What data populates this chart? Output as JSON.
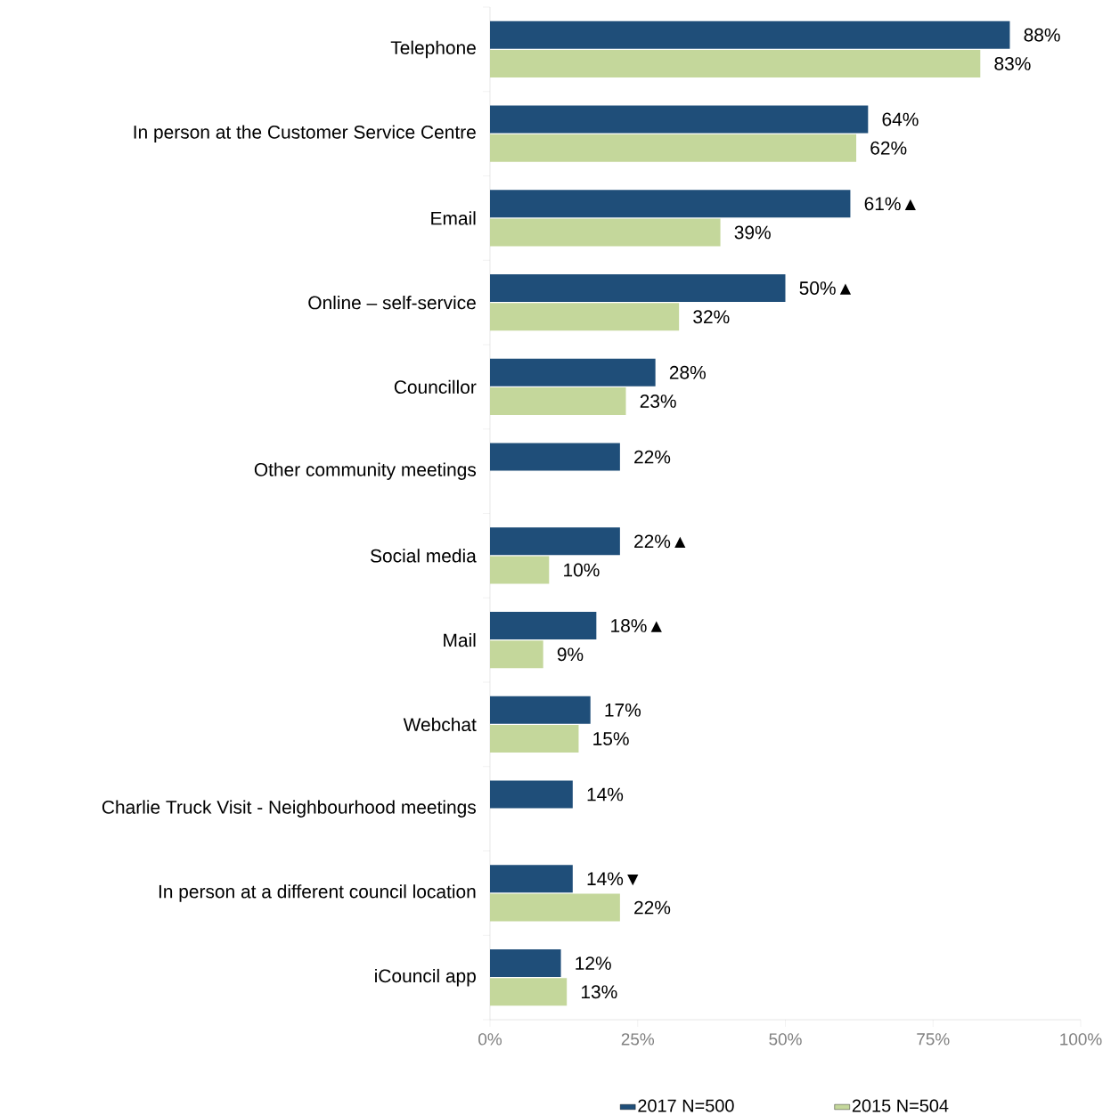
{
  "chart_data": {
    "type": "bar",
    "orientation": "horizontal",
    "legend": "bottom",
    "grid": false,
    "categories": [
      "Telephone",
      "In person at the Customer Service Centre",
      "Email",
      "Online – self-service",
      "Councillor",
      "Other community meetings",
      "Social media",
      "Mail",
      "Webchat",
      "Charlie Truck Visit - Neighbourhood meetings",
      "In person at a different council location",
      "iCouncil app"
    ],
    "xlim": [
      0,
      100
    ],
    "xticks": [
      {
        "value": 0,
        "label": "0%"
      },
      {
        "value": 25,
        "label": "25%"
      },
      {
        "value": 50,
        "label": "50%"
      },
      {
        "value": 75,
        "label": "75%"
      },
      {
        "value": 100,
        "label": "100%"
      }
    ],
    "series": [
      {
        "name": "2017 N=500",
        "color": "#1f4e79",
        "values": [
          88,
          64,
          61,
          50,
          28,
          22,
          22,
          18,
          17,
          14,
          14,
          12
        ],
        "value_labels": [
          "88%",
          "64%",
          "61%▲",
          "50%▲",
          "28%",
          "22%",
          "22%▲",
          "18%▲",
          "17%",
          "14%",
          "14%▼",
          "12%"
        ]
      },
      {
        "name": "2015 N=504",
        "color": "#c4d79b",
        "values": [
          83,
          62,
          39,
          32,
          23,
          null,
          10,
          9,
          15,
          null,
          22,
          13
        ],
        "value_labels": [
          "83%",
          "62%",
          "39%",
          "32%",
          "23%",
          null,
          "10%",
          "9%",
          "15%",
          null,
          "22%",
          "13%"
        ]
      }
    ]
  }
}
